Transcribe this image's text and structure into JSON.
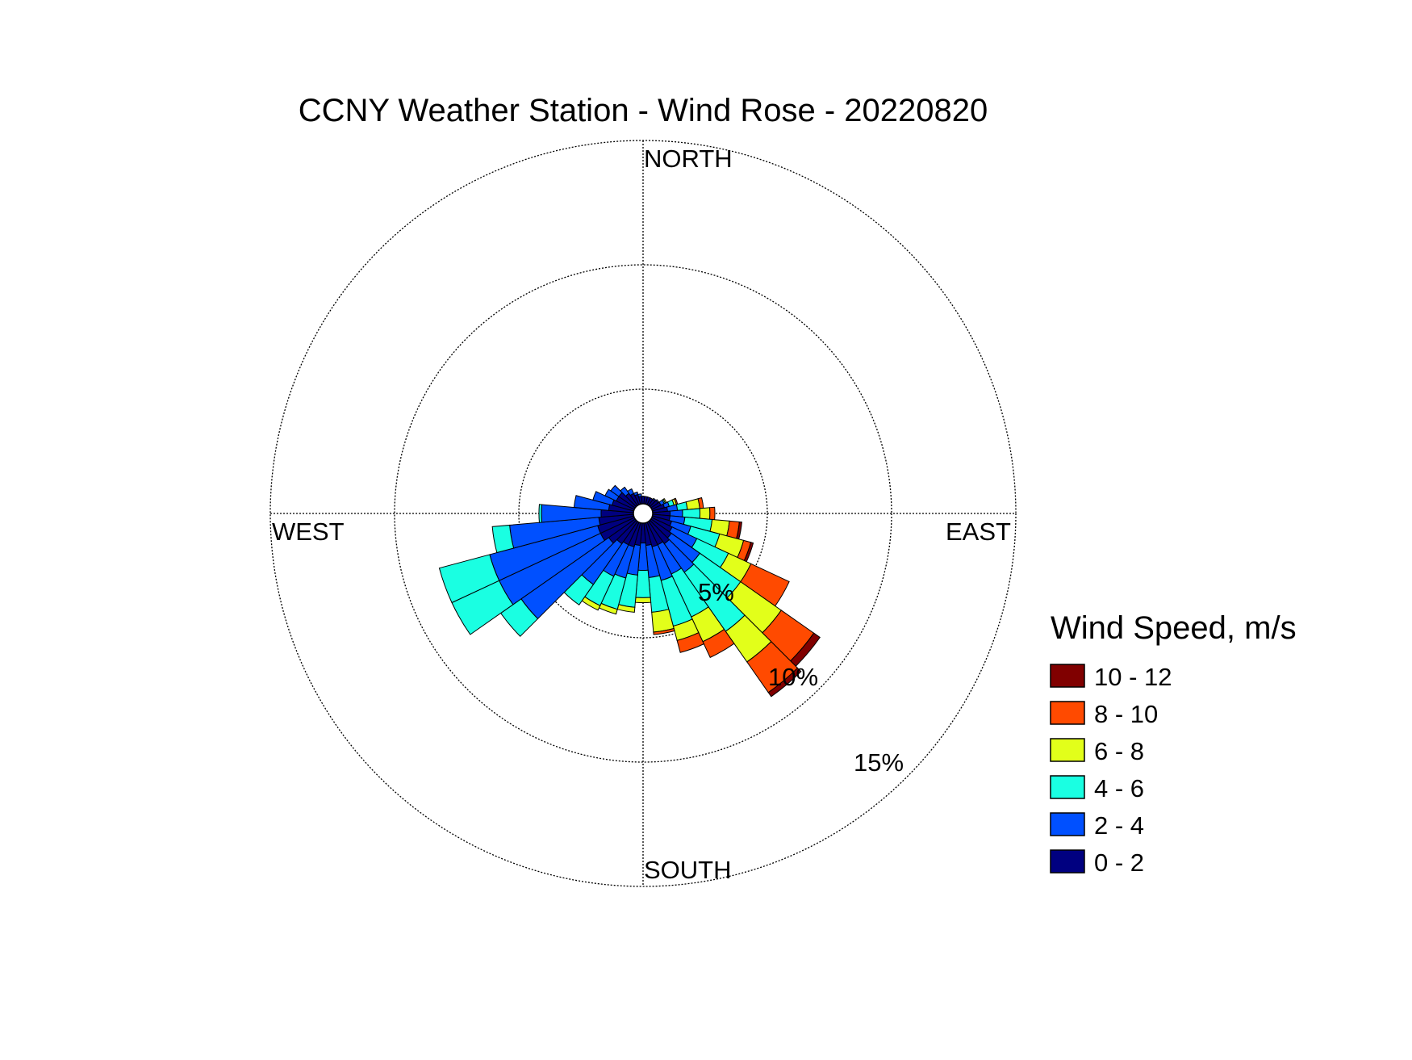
{
  "chart_data": {
    "type": "wind-rose",
    "title": "CCNY Weather Station - Wind Rose - 20220820",
    "directions": [
      "NORTH",
      "EAST",
      "SOUTH",
      "WEST"
    ],
    "radial_labels": [
      "5%",
      "10%",
      "15%"
    ],
    "radial_max": 15,
    "grid": true,
    "legend": {
      "title": "Wind Speed, m/s",
      "placement": "right",
      "bins": [
        {
          "label": "10 - 12",
          "color": "#800000"
        },
        {
          "label": "8 - 10",
          "color": "#ff4a00"
        },
        {
          "label": "6 - 8",
          "color": "#e2ff1a"
        },
        {
          "label": "4 - 6",
          "color": "#1affe2"
        },
        {
          "label": "2 - 4",
          "color": "#0050ff"
        },
        {
          "label": "0 - 2",
          "color": "#000080"
        }
      ]
    },
    "series": [
      {
        "direction_deg": 70,
        "cumulative_percent": [
          0.5,
          0.7,
          0.9,
          1.0,
          1.05,
          1.05
        ]
      },
      {
        "direction_deg": 80,
        "cumulative_percent": [
          0.6,
          1.0,
          1.4,
          1.9,
          2.05,
          2.05
        ]
      },
      {
        "direction_deg": 90,
        "cumulative_percent": [
          0.7,
          1.2,
          1.9,
          2.3,
          2.5,
          2.5
        ]
      },
      {
        "direction_deg": 100,
        "cumulative_percent": [
          0.7,
          1.3,
          2.4,
          3.1,
          3.5,
          3.6
        ]
      },
      {
        "direction_deg": 110,
        "cumulative_percent": [
          0.8,
          1.6,
          2.8,
          3.8,
          4.1,
          4.2
        ]
      },
      {
        "direction_deg": 120,
        "cumulative_percent": [
          0.9,
          2.0,
          3.4,
          4.4,
          6.1,
          6.1
        ]
      },
      {
        "direction_deg": 130,
        "cumulative_percent": [
          1.0,
          2.4,
          4.4,
          6.4,
          8.0,
          8.3
        ]
      },
      {
        "direction_deg": 140,
        "cumulative_percent": [
          1.1,
          2.5,
          5.4,
          6.9,
          8.4,
          8.6
        ]
      },
      {
        "direction_deg": 150,
        "cumulative_percent": [
          1.0,
          2.3,
          4.2,
          5.3,
          6.0,
          6.0
        ]
      },
      {
        "direction_deg": 160,
        "cumulative_percent": [
          1.0,
          2.4,
          4.3,
          4.9,
          5.4,
          5.4
        ]
      },
      {
        "direction_deg": 170,
        "cumulative_percent": [
          0.9,
          2.2,
          3.6,
          4.4,
          4.5,
          4.5
        ]
      },
      {
        "direction_deg": 180,
        "cumulative_percent": [
          0.8,
          1.9,
          3.0,
          3.2,
          3.2,
          3.2
        ]
      },
      {
        "direction_deg": 190,
        "cumulative_percent": [
          0.9,
          2.1,
          3.4,
          3.6,
          3.6,
          3.6
        ]
      },
      {
        "direction_deg": 200,
        "cumulative_percent": [
          1.0,
          2.3,
          3.6,
          3.8,
          3.8,
          3.8
        ]
      },
      {
        "direction_deg": 210,
        "cumulative_percent": [
          1.0,
          2.4,
          3.7,
          3.9,
          3.9,
          3.9
        ]
      },
      {
        "direction_deg": 220,
        "cumulative_percent": [
          1.1,
          3.1,
          4.1,
          4.1,
          4.1,
          4.1
        ]
      },
      {
        "direction_deg": 230,
        "cumulative_percent": [
          1.3,
          5.6,
          6.6,
          6.6,
          6.6,
          6.6
        ]
      },
      {
        "direction_deg": 240,
        "cumulative_percent": [
          1.5,
          6.0,
          8.1,
          8.1,
          8.1,
          8.1
        ]
      },
      {
        "direction_deg": 250,
        "cumulative_percent": [
          1.5,
          6.0,
          8.1,
          8.1,
          8.1,
          8.1
        ]
      },
      {
        "direction_deg": 260,
        "cumulative_percent": [
          1.4,
          5.0,
          5.7,
          5.7,
          5.7,
          5.7
        ]
      },
      {
        "direction_deg": 270,
        "cumulative_percent": [
          1.3,
          3.7,
          3.8,
          3.8,
          3.8,
          3.8
        ]
      },
      {
        "direction_deg": 280,
        "cumulative_percent": [
          1.0,
          2.4,
          2.4,
          2.4,
          2.4,
          2.4
        ]
      },
      {
        "direction_deg": 290,
        "cumulative_percent": [
          0.9,
          1.7,
          1.7,
          1.7,
          1.7,
          1.7
        ]
      },
      {
        "direction_deg": 300,
        "cumulative_percent": [
          0.8,
          1.3,
          1.3,
          1.3,
          1.3,
          1.3
        ]
      },
      {
        "direction_deg": 310,
        "cumulative_percent": [
          0.8,
          1.2,
          1.2,
          1.2,
          1.2,
          1.2
        ]
      },
      {
        "direction_deg": 320,
        "cumulative_percent": [
          0.6,
          0.9,
          0.9,
          0.9,
          0.9,
          0.9
        ]
      },
      {
        "direction_deg": 330,
        "cumulative_percent": [
          0.5,
          0.7,
          0.7,
          0.7,
          0.7,
          0.7
        ]
      },
      {
        "direction_deg": 340,
        "cumulative_percent": [
          0.4,
          0.5,
          0.5,
          0.5,
          0.5,
          0.5
        ]
      },
      {
        "direction_deg": 350,
        "cumulative_percent": [
          0.3,
          0.4,
          0.4,
          0.4,
          0.4,
          0.4
        ]
      },
      {
        "direction_deg": 0,
        "cumulative_percent": [
          0.3,
          0.3,
          0.3,
          0.3,
          0.3,
          0.3
        ]
      },
      {
        "direction_deg": 10,
        "cumulative_percent": [
          0.3,
          0.3,
          0.3,
          0.3,
          0.3,
          0.3
        ]
      },
      {
        "direction_deg": 20,
        "cumulative_percent": [
          0.3,
          0.3,
          0.3,
          0.3,
          0.3,
          0.3
        ]
      },
      {
        "direction_deg": 30,
        "cumulative_percent": [
          0.3,
          0.3,
          0.3,
          0.3,
          0.3,
          0.3
        ]
      },
      {
        "direction_deg": 40,
        "cumulative_percent": [
          0.3,
          0.35,
          0.35,
          0.35,
          0.35,
          0.35
        ]
      },
      {
        "direction_deg": 50,
        "cumulative_percent": [
          0.35,
          0.4,
          0.4,
          0.4,
          0.4,
          0.4
        ]
      },
      {
        "direction_deg": 60,
        "cumulative_percent": [
          0.4,
          0.55,
          0.6,
          0.65,
          0.65,
          0.65
        ]
      }
    ]
  }
}
